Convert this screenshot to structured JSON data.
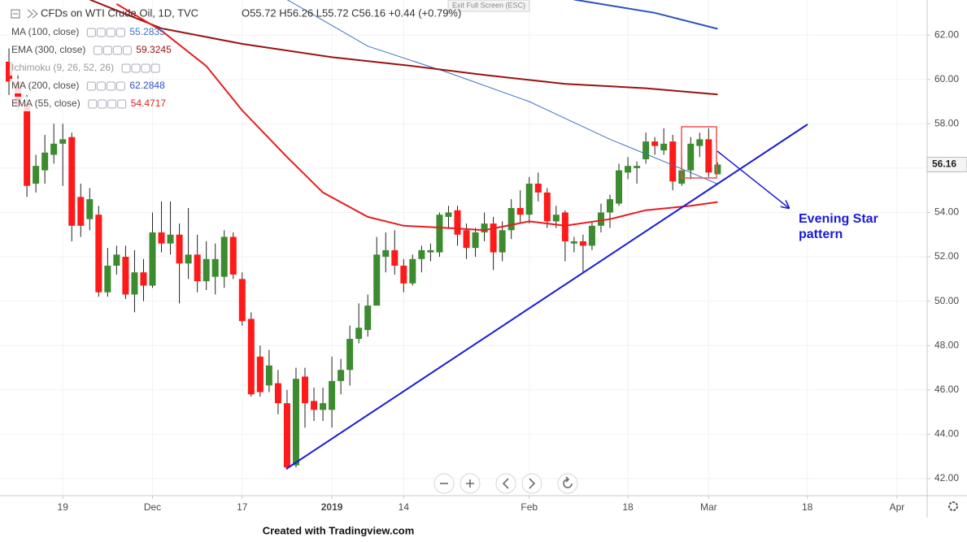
{
  "chart_data": {
    "type": "candlestick",
    "title": "CFDs on WTI Crude Oil, 1D, TVC",
    "ohlc_text": "O55.72 H56.26 L55.72 C56.16 +0.44 (+0.79%)",
    "exit_label": "Exit Full Screen (ESC)",
    "footer": "Created with Tradingview.com",
    "annotation": [
      "Evening Star",
      "pattern"
    ],
    "ichimoku": "Ichimoku (9, 26, 52, 26)",
    "up_color": "#3d8b2f",
    "down_color": "#ff1a1a",
    "grid": true,
    "ylim": [
      41.23,
      63.58
    ],
    "yticks": [
      {
        "value": 42,
        "label": "42.00"
      },
      {
        "value": 44,
        "label": "44.00"
      },
      {
        "value": 46,
        "label": "46.00"
      },
      {
        "value": 48,
        "label": "48.00"
      },
      {
        "value": 50,
        "label": "50.00"
      },
      {
        "value": 52,
        "label": "52.00"
      },
      {
        "value": 54,
        "label": "54.00"
      },
      {
        "value": 56,
        "label": "56.00"
      },
      {
        "value": 58,
        "label": "58.00"
      },
      {
        "value": 60,
        "label": "60.00"
      },
      {
        "value": 62,
        "label": "62.00"
      }
    ],
    "xlim": [
      -1,
      102.36
    ],
    "xticks": [
      {
        "value": 6,
        "label": "19"
      },
      {
        "value": 16,
        "label": "Dec"
      },
      {
        "value": 26,
        "label": "17"
      },
      {
        "value": 36,
        "label": "2019"
      },
      {
        "value": 44,
        "label": "14"
      },
      {
        "value": 58,
        "label": "Feb"
      },
      {
        "value": 69,
        "label": "18"
      },
      {
        "value": 78,
        "label": "Mar"
      },
      {
        "value": 89,
        "label": "18"
      },
      {
        "value": 99,
        "label": "Apr"
      }
    ],
    "x": [
      0,
      1,
      2,
      3,
      4,
      5,
      6,
      7,
      8,
      9,
      10,
      11,
      12,
      13,
      14,
      15,
      16,
      17,
      18,
      19,
      20,
      21,
      22,
      23,
      24,
      25,
      26,
      27,
      28,
      29,
      30,
      31,
      32,
      33,
      34,
      35,
      36,
      37,
      38,
      39,
      40,
      41,
      42,
      43,
      44,
      45,
      46,
      47,
      48,
      49,
      50,
      51,
      52,
      53,
      54,
      55,
      56,
      57,
      58,
      59,
      60,
      61,
      62,
      63,
      64,
      65,
      66,
      67,
      68,
      69,
      70,
      71,
      72,
      73,
      74,
      75,
      76,
      77,
      78,
      79
    ],
    "open": [
      60.8,
      59.9,
      58.9,
      55.3,
      55.9,
      56.6,
      57.1,
      57.4,
      54.7,
      53.7,
      53.9,
      50.4,
      51.6,
      52.0,
      50.3,
      51.3,
      50.7,
      53.1,
      52.6,
      53.0,
      51.7,
      52.1,
      50.9,
      51.1,
      51.1,
      52.9,
      51.0,
      49.2,
      47.5,
      46.2,
      46.3,
      45.4,
      42.6,
      46.6,
      45.5,
      45.1,
      45.1,
      46.4,
      46.9,
      48.3,
      48.7,
      49.8,
      52.0,
      52.3,
      51.6,
      50.8,
      51.9,
      52.2,
      52.2,
      53.8,
      54.1,
      53.2,
      52.4,
      53.1,
      53.5,
      52.2,
      53.2,
      54.2,
      53.9,
      55.3,
      54.9,
      53.6,
      54.0,
      52.6,
      52.7,
      52.5,
      53.4,
      54.0,
      54.4,
      55.8,
      56.0,
      56.4,
      57.2,
      56.8,
      57.2,
      55.3,
      55.9,
      57.0,
      57.3,
      55.72
    ],
    "high": [
      61.4,
      60.3,
      59.3,
      56.6,
      57.5,
      58.0,
      58.0,
      57.6,
      55.3,
      55.1,
      54.3,
      52.4,
      52.5,
      52.5,
      52.3,
      51.9,
      54.0,
      54.5,
      54.5,
      53.5,
      54.2,
      53.0,
      52.7,
      52.6,
      53.2,
      53.1,
      51.3,
      49.5,
      48.0,
      47.8,
      46.9,
      46.0,
      47.0,
      47.0,
      46.1,
      46.1,
      47.5,
      47.4,
      48.9,
      49.9,
      50.3,
      52.9,
      53.1,
      53.2,
      51.9,
      52.1,
      52.5,
      52.6,
      54.0,
      54.3,
      54.3,
      53.5,
      53.3,
      54.0,
      53.8,
      53.6,
      54.6,
      55.0,
      55.6,
      55.8,
      55.1,
      54.3,
      54.1,
      52.9,
      53.0,
      53.6,
      54.4,
      54.8,
      56.2,
      56.5,
      56.3,
      57.6,
      57.4,
      57.8,
      57.5,
      56.5,
      57.4,
      57.6,
      57.8,
      56.26
    ],
    "low": [
      59.3,
      58.6,
      54.7,
      54.9,
      55.3,
      56.2,
      55.2,
      52.7,
      52.9,
      53.2,
      50.2,
      50.2,
      51.2,
      50.1,
      49.5,
      50.0,
      50.6,
      52.2,
      52.1,
      49.9,
      51.0,
      50.4,
      50.5,
      50.3,
      50.6,
      51.0,
      48.9,
      45.7,
      45.7,
      45.9,
      44.9,
      42.4,
      42.5,
      44.3,
      44.6,
      44.6,
      44.3,
      45.8,
      46.2,
      48.1,
      48.4,
      49.8,
      51.3,
      51.2,
      50.4,
      50.7,
      51.3,
      51.8,
      52.0,
      53.3,
      52.5,
      51.9,
      52.0,
      52.7,
      51.4,
      51.8,
      52.8,
      53.5,
      53.5,
      54.5,
      53.3,
      53.3,
      51.8,
      52.2,
      51.3,
      52.3,
      53.1,
      53.3,
      54.3,
      55.5,
      55.3,
      56.2,
      56.6,
      56.6,
      55.0,
      55.2,
      55.5,
      56.5,
      55.6,
      55.72
    ],
    "close": [
      59.9,
      58.8,
      55.2,
      56.1,
      56.7,
      57.1,
      57.3,
      53.4,
      53.4,
      54.6,
      50.4,
      51.6,
      52.1,
      50.3,
      51.3,
      50.7,
      53.1,
      52.6,
      53.0,
      51.7,
      52.1,
      50.9,
      51.9,
      51.9,
      52.9,
      51.2,
      49.1,
      45.8,
      45.9,
      47.1,
      45.4,
      42.5,
      46.5,
      45.4,
      45.1,
      45.4,
      46.4,
      46.9,
      48.3,
      48.8,
      49.8,
      52.1,
      52.3,
      51.6,
      50.8,
      51.9,
      52.3,
      52.3,
      53.9,
      54.0,
      53.0,
      52.4,
      53.1,
      53.5,
      52.2,
      53.2,
      54.2,
      53.9,
      55.3,
      54.9,
      53.6,
      53.9,
      52.7,
      52.7,
      52.5,
      53.4,
      54.0,
      54.6,
      55.9,
      56.1,
      56.1,
      57.2,
      57.0,
      57.1,
      55.4,
      55.9,
      57.1,
      57.3,
      55.8,
      56.16
    ],
    "series": [
      {
        "name": "MA (100, close)",
        "color": "#3f6fc4",
        "width": 1,
        "legend_value": 55.2835,
        "x": [
          31,
          40,
          49,
          58,
          67,
          76,
          79
        ],
        "values": [
          63.6,
          61.5,
          60.3,
          59.0,
          57.3,
          55.8,
          55.28
        ]
      },
      {
        "name": "EMA (300, close)",
        "color": "#9b1111",
        "width": 2,
        "legend_value": 59.3245,
        "x": [
          9,
          17,
          26,
          36,
          45,
          53,
          62,
          71,
          79
        ],
        "values": [
          63.6,
          62.3,
          61.6,
          61.0,
          60.6,
          60.2,
          59.8,
          59.6,
          59.32
        ]
      },
      {
        "name": "MA (200, close)",
        "color": "#2a52be",
        "width": 2,
        "legend_value": 62.2848,
        "x": [
          63,
          72,
          79
        ],
        "values": [
          63.6,
          63.0,
          62.28
        ]
      },
      {
        "name": "EMA (55, close)",
        "color": "#e81c1c",
        "width": 2,
        "legend_value": 54.4717,
        "x": [
          12,
          17,
          22,
          26,
          31,
          35,
          40,
          44,
          49,
          53,
          58,
          62,
          67,
          71,
          76,
          79
        ],
        "values": [
          63.4,
          62.2,
          60.6,
          58.6,
          56.5,
          54.9,
          53.8,
          53.4,
          53.3,
          53.2,
          53.6,
          53.4,
          53.7,
          54.1,
          54.3,
          54.47
        ]
      }
    ]
  }
}
